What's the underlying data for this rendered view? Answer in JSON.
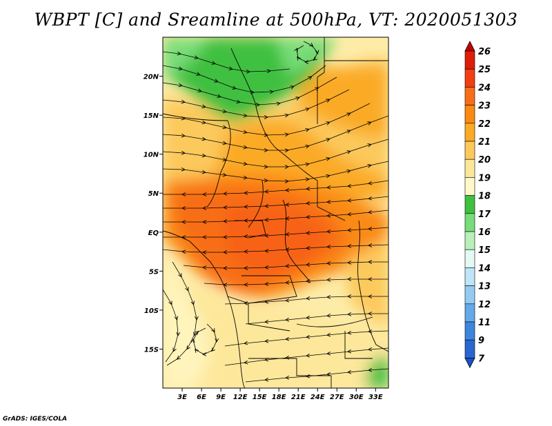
{
  "title": "WBPT [C] and Sreamline at 500hPa, VT: 2020051303",
  "credit": "GrADS: IGES/COLA",
  "map": {
    "projection": "latlon",
    "lon_range": [
      0,
      35
    ],
    "lat_range": [
      -20,
      25
    ],
    "lon_ticks": [
      "3E",
      "6E",
      "9E",
      "12E",
      "15E",
      "18E",
      "21E",
      "24E",
      "27E",
      "30E",
      "33E"
    ],
    "lat_ticks": [
      "20N",
      "15N",
      "10N",
      "5N",
      "EQ",
      "5S",
      "10S",
      "15S"
    ],
    "field": "Wet-bulb potential temperature (C) with 500hPa streamlines",
    "regions": [
      {
        "area": "north-west Sahel / Niger-Chad",
        "level": "16-18",
        "color": "#3fc03f"
      },
      {
        "area": "equatorial band 5N-8S",
        "level": "22-23",
        "color": "#f86e18"
      },
      {
        "area": "south-west Angola/Namibia",
        "level": "19-20",
        "color": "#fde79a"
      },
      {
        "area": "south-east corner",
        "level": "17-18",
        "color": "#3fc03f"
      }
    ]
  },
  "colorbar": {
    "labels": [
      "26",
      "25",
      "24",
      "23",
      "22",
      "21",
      "20",
      "19",
      "18",
      "17",
      "16",
      "15",
      "14",
      "13",
      "12",
      "11",
      "9",
      "7"
    ],
    "colors": [
      "#c40000",
      "#dd1e08",
      "#f23e12",
      "#f86e18",
      "#fa8a12",
      "#fbaa26",
      "#fcc95c",
      "#fde79a",
      "#fff8c8",
      "#3fc03f",
      "#78dd78",
      "#b8f0b8",
      "#e4f9f4",
      "#bfe6f8",
      "#93cbf2",
      "#64a9e8",
      "#3d86dc",
      "#2a66d0",
      "#1a50c8"
    ]
  }
}
